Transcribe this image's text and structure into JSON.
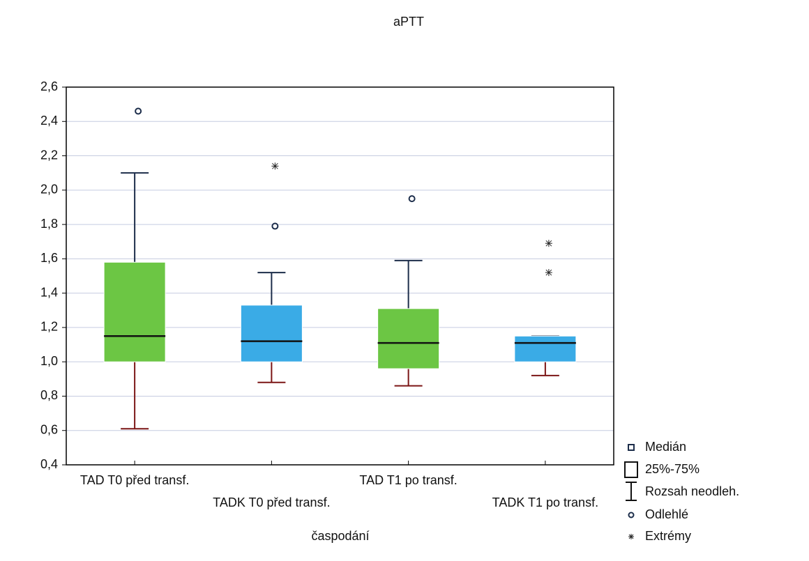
{
  "chart_data": {
    "type": "box",
    "title": "aPTT",
    "x_label": "časpodání",
    "categories": [
      "TAD T0 před transf.",
      "TADK T0 před transf.",
      "TAD T1 po transf.",
      "TADK T1 po transf."
    ],
    "boxes": [
      {
        "whisker_low": 0.61,
        "q1": 1.0,
        "median": 1.15,
        "q3": 1.58,
        "whisker_high": 2.1,
        "outliers": [
          2.46
        ],
        "extremes": [],
        "color": "#6cc644"
      },
      {
        "whisker_low": 0.88,
        "q1": 1.0,
        "median": 1.12,
        "q3": 1.33,
        "whisker_high": 1.52,
        "outliers": [
          1.79
        ],
        "extremes": [
          2.14
        ],
        "color": "#3aabe6"
      },
      {
        "whisker_low": 0.86,
        "q1": 0.96,
        "median": 1.11,
        "q3": 1.31,
        "whisker_high": 1.59,
        "outliers": [
          1.95
        ],
        "extremes": [],
        "color": "#6cc644"
      },
      {
        "whisker_low": 0.92,
        "q1": 1.0,
        "median": 1.11,
        "q3": 1.15,
        "whisker_high": 1.15,
        "outliers": [],
        "extremes": [
          1.69,
          1.52
        ],
        "color": "#3aabe6"
      }
    ],
    "upper_whisker_color": "#1c2d4a",
    "lower_whisker_color": "#7b1515",
    "ylim": [
      0.4,
      2.6
    ],
    "yticks": [
      {
        "value": 0.4,
        "label": "0,4"
      },
      {
        "value": 0.6,
        "label": "0,6"
      },
      {
        "value": 0.8,
        "label": "0,8"
      },
      {
        "value": 1.0,
        "label": "1,0"
      },
      {
        "value": 1.2,
        "label": "1,2"
      },
      {
        "value": 1.4,
        "label": "1,4"
      },
      {
        "value": 1.6,
        "label": "1,6"
      },
      {
        "value": 1.8,
        "label": "1,8"
      },
      {
        "value": 2.0,
        "label": "2,0"
      },
      {
        "value": 2.2,
        "label": "2,2"
      },
      {
        "value": 2.4,
        "label": "2,4"
      },
      {
        "value": 2.6,
        "label": "2,6"
      }
    ],
    "grid": true,
    "legend": {
      "median": "Medián",
      "box": "25%-75%",
      "range": "Rozsah neodleh.",
      "outlier": "Odlehlé",
      "extreme": "Extrémy"
    }
  }
}
